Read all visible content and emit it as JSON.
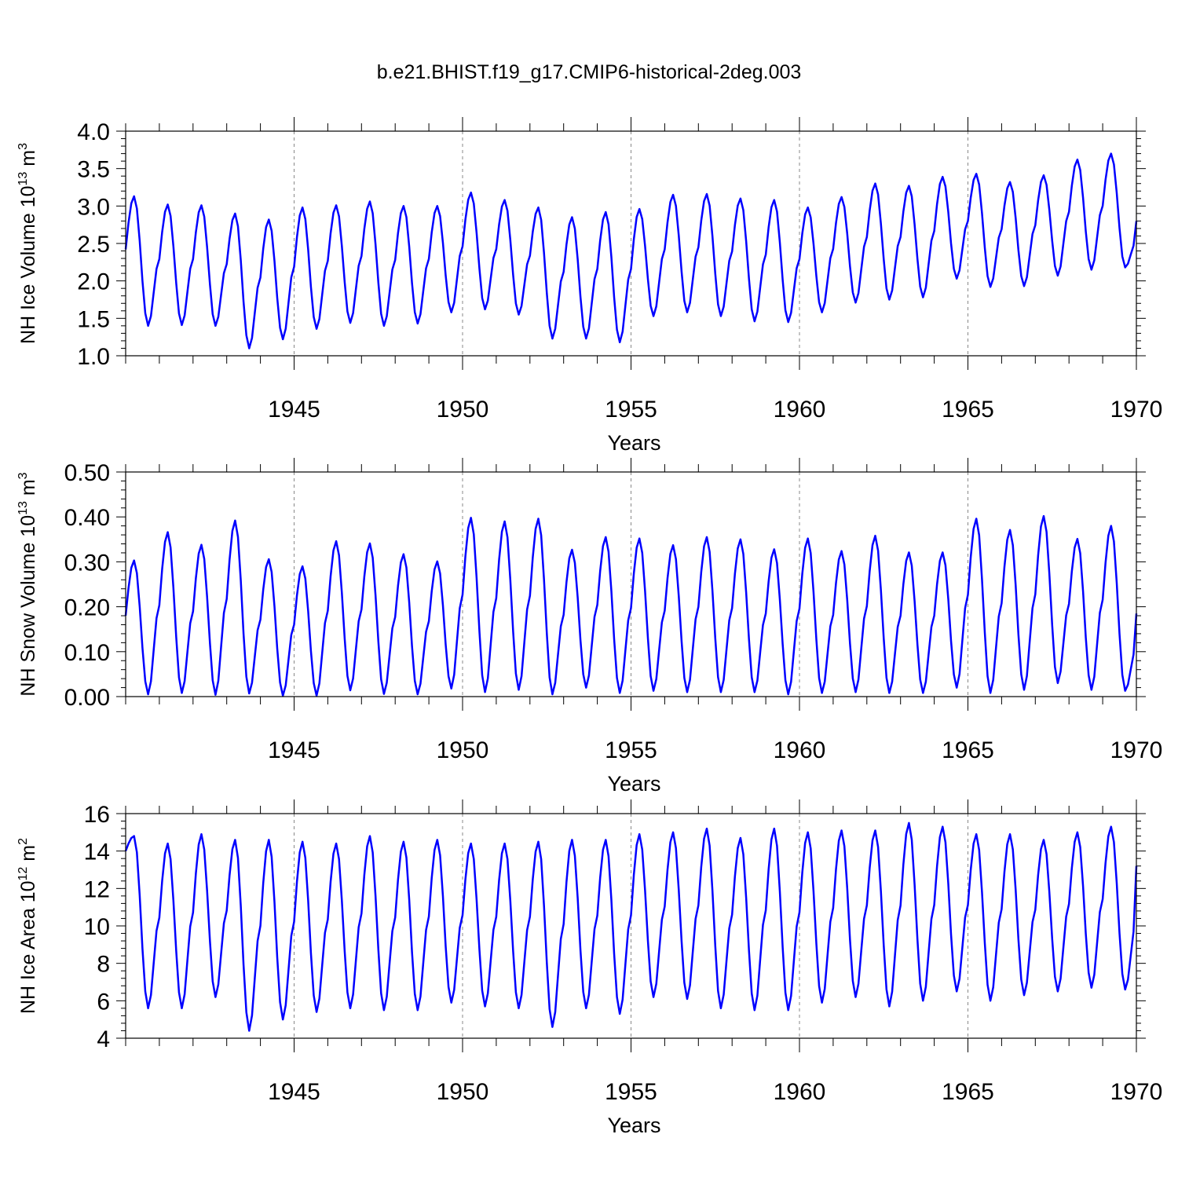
{
  "figure": {
    "title": "b.e21.BHIST.f19_g17.CMIP6-historical-2deg.003",
    "line_color": "#0000ff"
  },
  "chart_data": [
    {
      "type": "line",
      "ylabel_main": "NH Ice Volume 10",
      "ylabel_sup": "13",
      "ylabel_unit": " m",
      "ylabel_unit_sup": "3",
      "xlabel": "Years",
      "xlim": [
        1940.0,
        1970.0
      ],
      "ylim": [
        1.0,
        4.0
      ],
      "yticks": [
        1.0,
        1.5,
        2.0,
        2.5,
        3.0,
        3.5,
        4.0
      ],
      "ytick_labels": [
        "1.0",
        "1.5",
        "2.0",
        "2.5",
        "3.0",
        "3.5",
        "4.0"
      ],
      "xticks": [
        1945,
        1950,
        1955,
        1960,
        1965,
        1970
      ],
      "xtick_labels": [
        "1945",
        "1950",
        "1955",
        "1960",
        "1965",
        "1970"
      ],
      "grid": "dashed vertical lines at labeled years",
      "series": [
        {
          "peaks": [
            3.13,
            3.02,
            3.01,
            2.9,
            2.82,
            2.98,
            3.01,
            3.06,
            3.0,
            3.0,
            3.18,
            3.08,
            2.98,
            2.85,
            2.92,
            2.96,
            3.15,
            3.16,
            3.1,
            3.08,
            2.98,
            3.12,
            3.3,
            3.27,
            3.39,
            3.43,
            3.32,
            3.41,
            3.62,
            3.7
          ],
          "troughs": [
            1.4,
            1.41,
            1.4,
            1.1,
            1.22,
            1.36,
            1.44,
            1.4,
            1.43,
            1.58,
            1.62,
            1.55,
            1.23,
            1.23,
            1.18,
            1.53,
            1.58,
            1.53,
            1.46,
            1.45,
            1.58,
            1.71,
            1.75,
            1.78,
            2.03,
            1.92,
            1.93,
            2.07,
            2.15,
            2.18
          ],
          "start": 2.42,
          "end": 2.8
        }
      ]
    },
    {
      "type": "line",
      "ylabel_main": "NH Snow Volume 10",
      "ylabel_sup": "13",
      "ylabel_unit": " m",
      "ylabel_unit_sup": "3",
      "xlabel": "Years",
      "xlim": [
        1940.0,
        1970.0
      ],
      "ylim": [
        0.0,
        0.5
      ],
      "yticks": [
        0.0,
        0.1,
        0.2,
        0.3,
        0.4,
        0.5
      ],
      "ytick_labels": [
        "0.00",
        "0.10",
        "0.20",
        "0.30",
        "0.40",
        "0.50"
      ],
      "xticks": [
        1945,
        1950,
        1955,
        1960,
        1965,
        1970
      ],
      "xtick_labels": [
        "1945",
        "1950",
        "1955",
        "1960",
        "1965",
        "1970"
      ],
      "grid": "dashed vertical lines at labeled years",
      "series": [
        {
          "peaks": [
            0.303,
            0.366,
            0.338,
            0.392,
            0.306,
            0.29,
            0.346,
            0.341,
            0.317,
            0.301,
            0.398,
            0.39,
            0.396,
            0.327,
            0.355,
            0.352,
            0.337,
            0.355,
            0.35,
            0.328,
            0.352,
            0.324,
            0.358,
            0.321,
            0.321,
            0.396,
            0.371,
            0.402,
            0.351,
            0.38
          ],
          "troughs": [
            0.005,
            0.008,
            0.004,
            0.007,
            0.002,
            0.002,
            0.014,
            0.006,
            0.005,
            0.018,
            0.01,
            0.015,
            0.005,
            0.02,
            0.008,
            0.013,
            0.01,
            0.01,
            0.01,
            0.005,
            0.008,
            0.01,
            0.008,
            0.008,
            0.02,
            0.008,
            0.015,
            0.03,
            0.015,
            0.013
          ],
          "start": 0.18,
          "end": 0.185
        }
      ]
    },
    {
      "type": "line",
      "ylabel_main": "NH Ice Area 10",
      "ylabel_sup": "12",
      "ylabel_unit": " m",
      "ylabel_unit_sup": "2",
      "xlabel": "Years",
      "xlim": [
        1940.0,
        1970.0
      ],
      "ylim": [
        4,
        16
      ],
      "yticks": [
        4,
        6,
        8,
        10,
        12,
        14,
        16
      ],
      "ytick_labels": [
        "4",
        "6",
        "8",
        "10",
        "12",
        "14",
        "16"
      ],
      "xticks": [
        1945,
        1950,
        1955,
        1960,
        1965,
        1970
      ],
      "xtick_labels": [
        "1945",
        "1950",
        "1955",
        "1960",
        "1965",
        "1970"
      ],
      "grid": "dashed vertical lines at labeled years",
      "series": [
        {
          "peaks": [
            14.8,
            14.4,
            14.9,
            14.6,
            14.6,
            14.5,
            14.4,
            14.8,
            14.5,
            14.6,
            14.4,
            14.4,
            14.5,
            14.6,
            14.6,
            14.9,
            15.0,
            15.2,
            14.7,
            15.2,
            15.0,
            15.1,
            15.1,
            15.5,
            15.3,
            14.9,
            14.9,
            14.6,
            15.0,
            15.3
          ],
          "troughs": [
            5.6,
            5.6,
            6.2,
            4.4,
            5.0,
            5.4,
            5.6,
            5.5,
            5.5,
            5.9,
            5.7,
            5.6,
            4.6,
            5.6,
            5.3,
            6.2,
            6.1,
            5.6,
            5.5,
            5.5,
            5.9,
            6.2,
            5.7,
            6.0,
            6.5,
            6.0,
            6.3,
            6.5,
            6.7,
            6.6
          ],
          "start": 14.0,
          "end": 13.2
        }
      ]
    }
  ]
}
